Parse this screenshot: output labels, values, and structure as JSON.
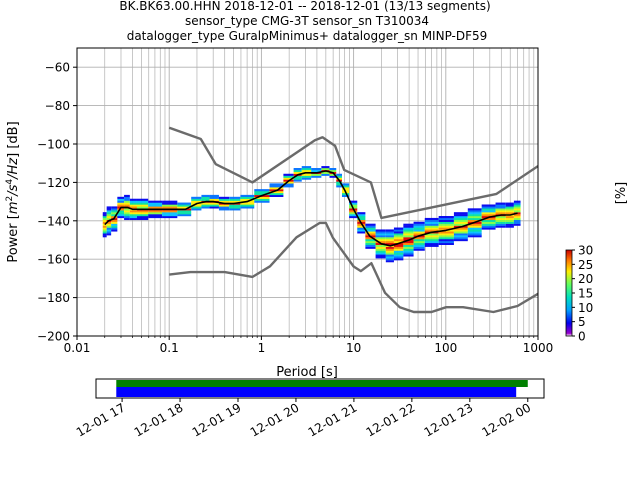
{
  "title_lines": [
    "BK.BK63.00.HHN   2018-12-01 -- 2018-12-01  (13/13 segments)",
    "sensor_type CMG-3T sensor_sn T310034",
    "datalogger_type GuralpMinimus+ datalogger_sn MINP-DF59"
  ],
  "chart_data": [
    {
      "type": "line",
      "title": "",
      "xlabel": "Period [s]",
      "ylabel_parts": [
        "Power [",
        "m",
        "2",
        "/s",
        "4",
        "/Hz",
        "] [dB]"
      ],
      "x_scale": "log",
      "xlim": [
        0.01,
        1000
      ],
      "ylim": [
        -200,
        -50
      ],
      "grid": true,
      "x_ticks": [
        0.01,
        0.1,
        1,
        10,
        100,
        1000
      ],
      "x_tick_labels": [
        "0.01",
        "0.1",
        "1",
        "10",
        "100",
        "1000"
      ],
      "y_ticks": [
        -200,
        -180,
        -160,
        -140,
        -120,
        -100,
        -80,
        -60
      ],
      "y_tick_labels": [
        "−200",
        "−180",
        "−160",
        "−140",
        "−120",
        "−100",
        "−80",
        "−60"
      ],
      "colors": {
        "noise_models": "#6b6b6b",
        "mode": "#000000",
        "grid": "#b0b0b0"
      },
      "series": [
        {
          "key": "high_noise_model",
          "x": [
            0.1,
            0.22,
            0.32,
            0.8,
            3.8,
            4.6,
            6.3,
            7.9,
            15.4,
            20,
            354.8,
            1000
          ],
          "y": [
            -91.5,
            -97.4,
            -110.5,
            -120.0,
            -98.0,
            -96.5,
            -101.0,
            -113.5,
            -120.0,
            -138.5,
            -126.0,
            -111.5
          ]
        },
        {
          "key": "low_noise_model",
          "x": [
            0.1,
            0.17,
            0.4,
            0.8,
            1.24,
            2.4,
            4.3,
            5.0,
            6.0,
            10.0,
            12.0,
            15.6,
            21.9,
            31.6,
            45.0,
            70.0,
            101.0,
            154.0,
            328.0,
            600.0,
            1000.0
          ],
          "y": [
            -168.0,
            -166.7,
            -166.7,
            -169.2,
            -163.7,
            -148.6,
            -141.1,
            -141.1,
            -149.0,
            -163.8,
            -166.2,
            -162.1,
            -177.5,
            -185.0,
            -187.5,
            -187.5,
            -185.0,
            -185.0,
            -187.5,
            -184.4,
            -178.0
          ]
        },
        {
          "key": "mode",
          "x": [
            0.02,
            0.022,
            0.025,
            0.03,
            0.035,
            0.04,
            0.05,
            0.07,
            0.1,
            0.15,
            0.2,
            0.25,
            0.3,
            0.4,
            0.5,
            0.7,
            1.0,
            1.5,
            2.0,
            2.5,
            3.0,
            4.0,
            5.0,
            6.0,
            7.0,
            8.0,
            10.0,
            12.0,
            15.0,
            20.0,
            25.0,
            30.0,
            40.0,
            50.0,
            70.0,
            100.0,
            150.0,
            200.0,
            300.0,
            400.0,
            500.0,
            600.0
          ],
          "y": [
            -142,
            -140,
            -139,
            -133,
            -133,
            -134,
            -134,
            -134,
            -134,
            -134,
            -131,
            -130,
            -130,
            -131,
            -131,
            -130,
            -127,
            -124,
            -119,
            -116,
            -115,
            -115,
            -114,
            -115,
            -119,
            -124,
            -134,
            -141,
            -148,
            -152,
            -153,
            -152,
            -150,
            -148,
            -146,
            -145,
            -143,
            -141,
            -138,
            -137,
            -137,
            -136
          ]
        }
      ],
      "ppsd": {
        "x": [
          0.02,
          0.022,
          0.025,
          0.03,
          0.035,
          0.04,
          0.05,
          0.07,
          0.1,
          0.15,
          0.2,
          0.25,
          0.3,
          0.4,
          0.5,
          0.7,
          1.0,
          1.5,
          2.0,
          2.5,
          3.0,
          4.0,
          5.0,
          6.0,
          7.0,
          8.0,
          10.0,
          12.0,
          15.0,
          20.0,
          25.0,
          30.0,
          40.0,
          50.0,
          70.0,
          100.0,
          150.0,
          200.0,
          300.0,
          400.0,
          500.0,
          600.0
        ],
        "spread_db": [
          6,
          7,
          6,
          5,
          6,
          5,
          5,
          4,
          4,
          3,
          3,
          3,
          3,
          3,
          3,
          3,
          3,
          3,
          3,
          3,
          3,
          2,
          2,
          2,
          3,
          3,
          4,
          5,
          6,
          7,
          8,
          8,
          8,
          7,
          7,
          7,
          7,
          7,
          6,
          6,
          6,
          6
        ]
      },
      "colorbar": {
        "label": "[%]",
        "min": 0,
        "max": 30,
        "ticks": [
          0,
          5,
          10,
          15,
          20,
          25,
          30
        ],
        "tick_labels": [
          "0",
          "5",
          "10",
          "15",
          "20",
          "25",
          "30"
        ]
      }
    },
    {
      "type": "bar",
      "title": "",
      "orientation": "timeline",
      "x_tick_labels": [
        "12-01 17",
        "12-01 18",
        "12-01 19",
        "12-01 20",
        "12-01 21",
        "12-01 22",
        "12-01 23",
        "12-02 00"
      ],
      "x_ticks_hours": [
        17,
        18,
        19,
        20,
        21,
        22,
        23,
        24
      ],
      "xlim_hours": [
        16.55,
        24.28
      ],
      "series": [
        {
          "key": "data_available",
          "color": "#008000",
          "start_hours": 16.9,
          "end_hours": 24.0
        },
        {
          "key": "psd_coverage",
          "color": "#0000ff",
          "start_hours": 16.9,
          "end_hours": 23.8
        }
      ]
    }
  ]
}
